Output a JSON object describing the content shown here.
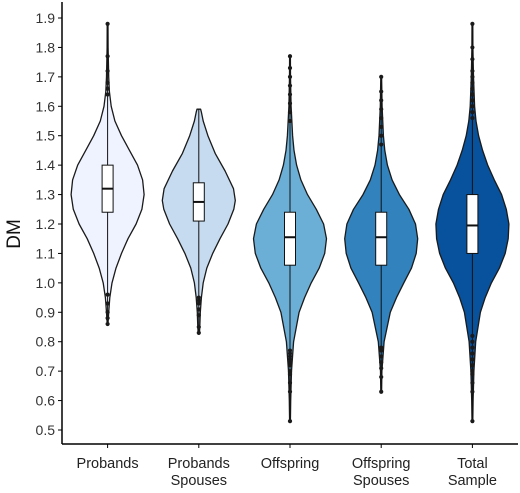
{
  "chart_data": {
    "type": "violin",
    "title": "",
    "xlabel": "",
    "ylabel": "DM",
    "ylim": [
      0.5,
      1.9
    ],
    "yticks": [
      "0.5",
      "0.6",
      "0.7",
      "0.8",
      "0.9",
      "1.0",
      "1.1",
      "1.2",
      "1.3",
      "1.4",
      "1.5",
      "1.6",
      "1.7",
      "1.8",
      "1.9"
    ],
    "grid": false,
    "legend": "none",
    "groups": [
      {
        "label": [
          "Probands"
        ],
        "fill": "#eff3ff",
        "min": 0.86,
        "q1": 1.24,
        "median": 1.32,
        "q3": 1.4,
        "max": 1.88,
        "outliers": [
          0.86,
          0.88,
          0.9,
          0.93,
          0.96,
          1.64,
          1.66,
          1.68,
          1.72,
          1.77,
          1.88
        ],
        "density": [
          [
            0.86,
            0.01
          ],
          [
            0.9,
            0.03
          ],
          [
            0.95,
            0.06
          ],
          [
            1.0,
            0.12
          ],
          [
            1.05,
            0.23
          ],
          [
            1.1,
            0.38
          ],
          [
            1.15,
            0.56
          ],
          [
            1.2,
            0.78
          ],
          [
            1.25,
            0.94
          ],
          [
            1.3,
            1.0
          ],
          [
            1.35,
            0.96
          ],
          [
            1.4,
            0.82
          ],
          [
            1.45,
            0.6
          ],
          [
            1.5,
            0.38
          ],
          [
            1.55,
            0.2
          ],
          [
            1.6,
            0.1
          ],
          [
            1.65,
            0.05
          ],
          [
            1.7,
            0.03
          ],
          [
            1.8,
            0.015
          ],
          [
            1.88,
            0.01
          ]
        ]
      },
      {
        "label": [
          "Probands",
          "Spouses"
        ],
        "fill": "#c6dbef",
        "min": 0.83,
        "q1": 1.21,
        "median": 1.275,
        "q3": 1.34,
        "max": 1.59,
        "outliers": [
          0.83,
          0.85,
          0.89,
          0.91,
          0.93,
          0.94,
          0.95
        ],
        "density": [
          [
            0.83,
            0.02
          ],
          [
            0.86,
            0.03
          ],
          [
            0.9,
            0.04
          ],
          [
            0.95,
            0.07
          ],
          [
            1.0,
            0.12
          ],
          [
            1.05,
            0.22
          ],
          [
            1.1,
            0.38
          ],
          [
            1.15,
            0.58
          ],
          [
            1.2,
            0.8
          ],
          [
            1.25,
            0.96
          ],
          [
            1.28,
            1.0
          ],
          [
            1.32,
            0.95
          ],
          [
            1.38,
            0.72
          ],
          [
            1.44,
            0.45
          ],
          [
            1.5,
            0.25
          ],
          [
            1.55,
            0.12
          ],
          [
            1.58,
            0.07
          ],
          [
            1.59,
            0.05
          ]
        ]
      },
      {
        "label": [
          "Offspring"
        ],
        "fill": "#6baed6",
        "min": 0.53,
        "q1": 1.06,
        "median": 1.155,
        "q3": 1.24,
        "max": 1.77,
        "outliers": [
          0.53,
          0.63,
          0.66,
          0.69,
          0.7,
          0.72,
          0.73,
          0.74,
          0.75,
          0.76,
          0.77,
          1.55,
          1.58,
          1.61,
          1.64,
          1.67,
          1.7,
          1.73,
          1.77
        ],
        "density": [
          [
            0.53,
            0.01
          ],
          [
            0.6,
            0.02
          ],
          [
            0.7,
            0.04
          ],
          [
            0.8,
            0.1
          ],
          [
            0.9,
            0.25
          ],
          [
            0.95,
            0.4
          ],
          [
            1.0,
            0.58
          ],
          [
            1.05,
            0.8
          ],
          [
            1.1,
            0.95
          ],
          [
            1.15,
            1.0
          ],
          [
            1.2,
            0.92
          ],
          [
            1.25,
            0.72
          ],
          [
            1.3,
            0.48
          ],
          [
            1.35,
            0.3
          ],
          [
            1.4,
            0.18
          ],
          [
            1.45,
            0.11
          ],
          [
            1.5,
            0.07
          ],
          [
            1.6,
            0.03
          ],
          [
            1.7,
            0.015
          ],
          [
            1.77,
            0.01
          ]
        ]
      },
      {
        "label": [
          "Offspring",
          "Spouses"
        ],
        "fill": "#3182bd",
        "min": 0.63,
        "q1": 1.06,
        "median": 1.155,
        "q3": 1.24,
        "max": 1.7,
        "outliers": [
          0.63,
          0.68,
          0.71,
          0.73,
          0.75,
          0.77,
          0.78,
          1.47,
          1.5,
          1.53,
          1.56,
          1.59,
          1.62,
          1.65,
          1.7
        ],
        "density": [
          [
            0.63,
            0.01
          ],
          [
            0.7,
            0.02
          ],
          [
            0.8,
            0.08
          ],
          [
            0.9,
            0.25
          ],
          [
            0.95,
            0.42
          ],
          [
            1.0,
            0.62
          ],
          [
            1.05,
            0.83
          ],
          [
            1.1,
            0.96
          ],
          [
            1.15,
            1.0
          ],
          [
            1.2,
            0.94
          ],
          [
            1.25,
            0.76
          ],
          [
            1.3,
            0.5
          ],
          [
            1.35,
            0.3
          ],
          [
            1.4,
            0.17
          ],
          [
            1.45,
            0.1
          ],
          [
            1.5,
            0.06
          ],
          [
            1.6,
            0.025
          ],
          [
            1.7,
            0.01
          ]
        ]
      },
      {
        "label": [
          "Total",
          "Sample"
        ],
        "fill": "#08519c",
        "min": 0.53,
        "q1": 1.1,
        "median": 1.195,
        "q3": 1.3,
        "max": 1.88,
        "outliers": [
          0.53,
          0.63,
          0.66,
          0.69,
          0.7,
          0.72,
          0.74,
          0.76,
          0.78,
          0.8,
          0.82,
          1.56,
          1.58,
          1.6,
          1.62,
          1.64,
          1.66,
          1.68,
          1.7,
          1.72,
          1.76,
          1.8,
          1.88
        ],
        "density": [
          [
            0.53,
            0.01
          ],
          [
            0.6,
            0.02
          ],
          [
            0.7,
            0.04
          ],
          [
            0.8,
            0.09
          ],
          [
            0.9,
            0.22
          ],
          [
            0.95,
            0.35
          ],
          [
            1.0,
            0.52
          ],
          [
            1.05,
            0.74
          ],
          [
            1.1,
            0.9
          ],
          [
            1.15,
            0.98
          ],
          [
            1.2,
            1.0
          ],
          [
            1.25,
            0.93
          ],
          [
            1.3,
            0.8
          ],
          [
            1.35,
            0.6
          ],
          [
            1.4,
            0.42
          ],
          [
            1.45,
            0.28
          ],
          [
            1.5,
            0.17
          ],
          [
            1.55,
            0.1
          ],
          [
            1.6,
            0.06
          ],
          [
            1.7,
            0.03
          ],
          [
            1.8,
            0.015
          ],
          [
            1.88,
            0.01
          ]
        ]
      }
    ]
  }
}
